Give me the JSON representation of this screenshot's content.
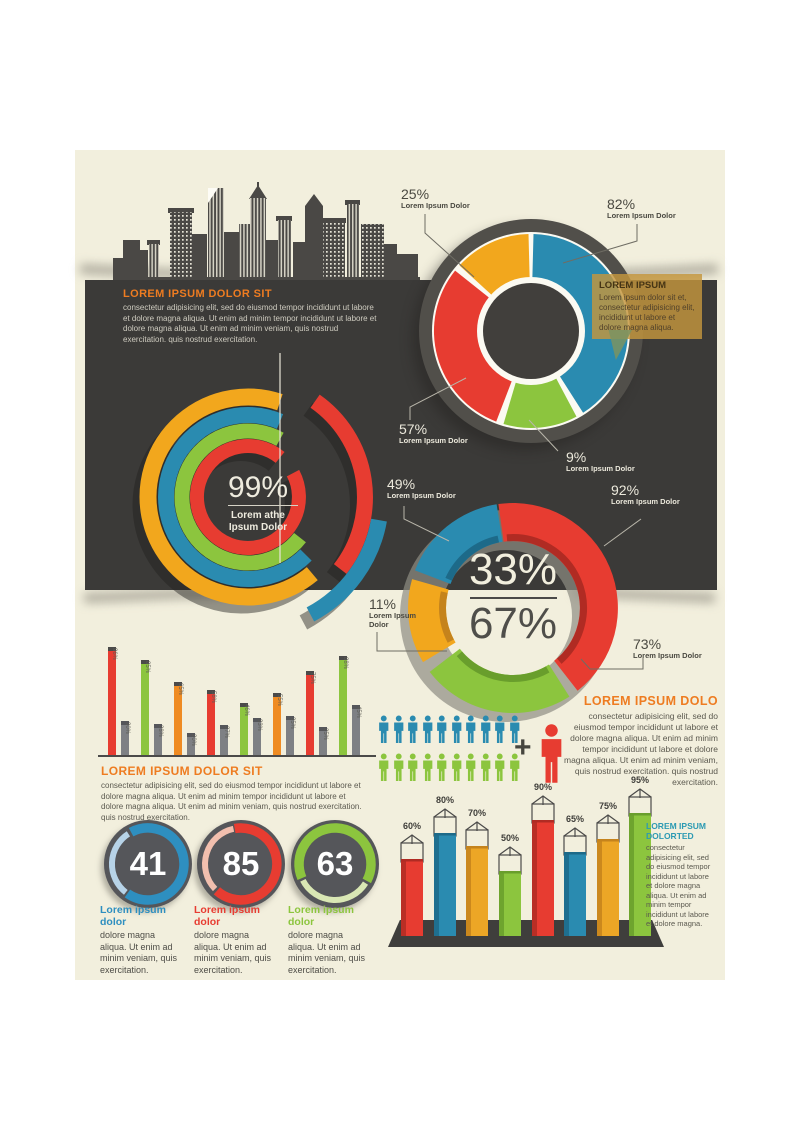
{
  "colors": {
    "cream": "#f2efdd",
    "band_dark": "#3b3a38",
    "red": "#e73c31",
    "blue": "#2a8bb0",
    "orange_yellow": "#f2a71d",
    "orange": "#ef8b22",
    "orange_3d": "#eca626",
    "green": "#8cc53e",
    "gray_bar": "#7e8084",
    "heading_orange": "#ee7c21",
    "heading_teal": "#2c9ab3",
    "gauge_blue": "#2e8fc0"
  },
  "intro": {
    "title": "LOREM IPSUM DOLOR SIT",
    "body": "consectetur adipisicing elit, sed do eiusmod tempor incididunt ut labore et dolore magna aliqua. Ut enim ad minim tempor incididunt ut labore et dolore magna aliqua. Ut enim ad minim veniam, quis nostrud exercitation. quis nostrud exercitation."
  },
  "bubble": {
    "title": "LOREM IPSUM",
    "body": "Lorem ipsum dolor sit et, consectetur adipisicing elit, incididunt ut labore et dolore magna aliqua."
  },
  "mid_block": {
    "title": "LOREM IPSUM DOLOR SIT",
    "body": "consectetur adipisicing elit, sed do eiusmod tempor incididunt ut labore et dolore magna aliqua. Ut enim ad minim tempor incididunt ut labore et dolore magna aliqua. Ut enim ad minim veniam, quis nostrud exercitation. quis nostrud exercitation."
  },
  "dolo_block": {
    "title": "LOREM IPSUM DOLO",
    "body": "consectetur adipisicing elit, sed do eiusmod tempor incididunt ut labore et dolore magna aliqua. Ut enim ad minim tempor incididunt ut labore et dolore magna aliqua. Ut enim ad minim veniam, quis nostrud exercitation. quis nostrud exercitation."
  },
  "dolorted_block": {
    "title": "LOREM IPSUM DOLORTED",
    "body": "consectetur adipisicing elit, sed do eiusmod tempor incididunt ut labore et dolore magna aliqua. Ut enim ad minim tempor incididunt ut labore et dolore magna."
  },
  "chart_data": [
    {
      "id": "top-donut-pie",
      "type": "pie",
      "legend_position": "callouts",
      "slices": [
        {
          "label": "Lorem Ipsum Dolor",
          "value": 25,
          "value_label": "25%",
          "color": "#f2a71d"
        },
        {
          "label": "Lorem Ipsum Dolor",
          "value": 82,
          "value_label": "82%",
          "color": "#2a8bb0"
        },
        {
          "label": "Lorem Ipsum Dolor",
          "value": 57,
          "value_label": "57%",
          "color": "#e73c31"
        },
        {
          "label": "Lorem Ipsum Dolor",
          "value": 9,
          "value_label": "9%",
          "color": "#8cc53e"
        }
      ]
    },
    {
      "id": "concentric-rings",
      "type": "pie",
      "variant": "concentric-arcs",
      "center_value": "99%",
      "center_label_line1": "Lorem athe",
      "center_label_line2": "Ipsum Dolor",
      "ring_colors": [
        "#f2a71d",
        "#2a8bb0",
        "#8cc53e",
        "#e73c31"
      ]
    },
    {
      "id": "split-donut",
      "type": "pie",
      "center_top": "33%",
      "center_bottom": "67%",
      "slices": [
        {
          "label": "Lorem Ipsum Dolor",
          "value": 49,
          "value_label": "49%",
          "color": "#2a8bb0"
        },
        {
          "label": "Lorem Ipsum Dolor",
          "value": 92,
          "value_label": "92%",
          "color": "#e73c31"
        },
        {
          "label": "Lorem Ipsum Dolor",
          "value": 11,
          "value_label": "11%",
          "color": "#f2a71d"
        },
        {
          "label": "Lorem Ipsum Dolor",
          "value": 73,
          "value_label": "73%",
          "color": "#8cc53e"
        }
      ]
    },
    {
      "id": "paired-bars",
      "type": "bar",
      "ylim": [
        0,
        100
      ],
      "grid": false,
      "pairs": [
        {
          "value": 96,
          "value_label": "96%",
          "color": "#e73c31",
          "gray_value": 30,
          "gray_label": "30%"
        },
        {
          "value": 85,
          "value_label": "85%",
          "color": "#8cc53e",
          "gray_value": 28,
          "gray_label": "28%"
        },
        {
          "value": 65,
          "value_label": "65%",
          "color": "#ef8b22",
          "gray_value": 20,
          "gray_label": "20%"
        },
        {
          "value": 58,
          "value_label": "58%",
          "color": "#e73c31",
          "gray_value": 27,
          "gray_label": "27%"
        },
        {
          "value": 46,
          "value_label": "46%",
          "color": "#8cc53e",
          "gray_value": 33,
          "gray_label": "33%"
        },
        {
          "value": 55,
          "value_label": "55%",
          "color": "#ef8b22",
          "gray_value": 35,
          "gray_label": "35%"
        },
        {
          "value": 75,
          "value_label": "75%",
          "color": "#e73c31",
          "gray_value": 25,
          "gray_label": "25%"
        },
        {
          "value": 88,
          "value_label": "88%",
          "color": "#8cc53e",
          "gray_value": 45,
          "gray_label": "45%"
        }
      ]
    },
    {
      "id": "pictograph",
      "type": "pictograph",
      "rows": [
        {
          "count": 10,
          "color": "#2a8bb0"
        },
        {
          "count": 10,
          "color": "#8cc53e"
        }
      ],
      "plus": "+",
      "highlight_count": 1,
      "highlight_color": "#e73c31"
    },
    {
      "id": "gauges",
      "type": "pie",
      "variant": "gauge",
      "items": [
        {
          "value": "41",
          "color": "#2e8fc0",
          "title": "Lorem ipsum dolor",
          "body": "dolore magna aliqua. Ut enim ad minim veniam, quis exercitation."
        },
        {
          "value": "85",
          "color": "#e73c31",
          "title": "Lorem ipsum dolor",
          "body": "dolore magna aliqua. Ut enim ad minim veniam, quis exercitation."
        },
        {
          "value": "63",
          "color": "#8cc53e",
          "title": "Lorem ipsum dolor",
          "body": "dolore magna aliqua. Ut enim ad minim veniam, quis exercitation."
        }
      ]
    },
    {
      "id": "columns-3d",
      "type": "bar",
      "ylim": [
        0,
        100
      ],
      "values": [
        60,
        80,
        70,
        50,
        90,
        65,
        75,
        95
      ],
      "value_labels": [
        "60%",
        "80%",
        "70%",
        "50%",
        "90%",
        "65%",
        "75%",
        "95%"
      ],
      "colors": [
        "#e73c31",
        "#2a8bb0",
        "#eca626",
        "#8cc53e",
        "#e73c31",
        "#2a8bb0",
        "#eca626",
        "#8cc53e"
      ]
    }
  ]
}
